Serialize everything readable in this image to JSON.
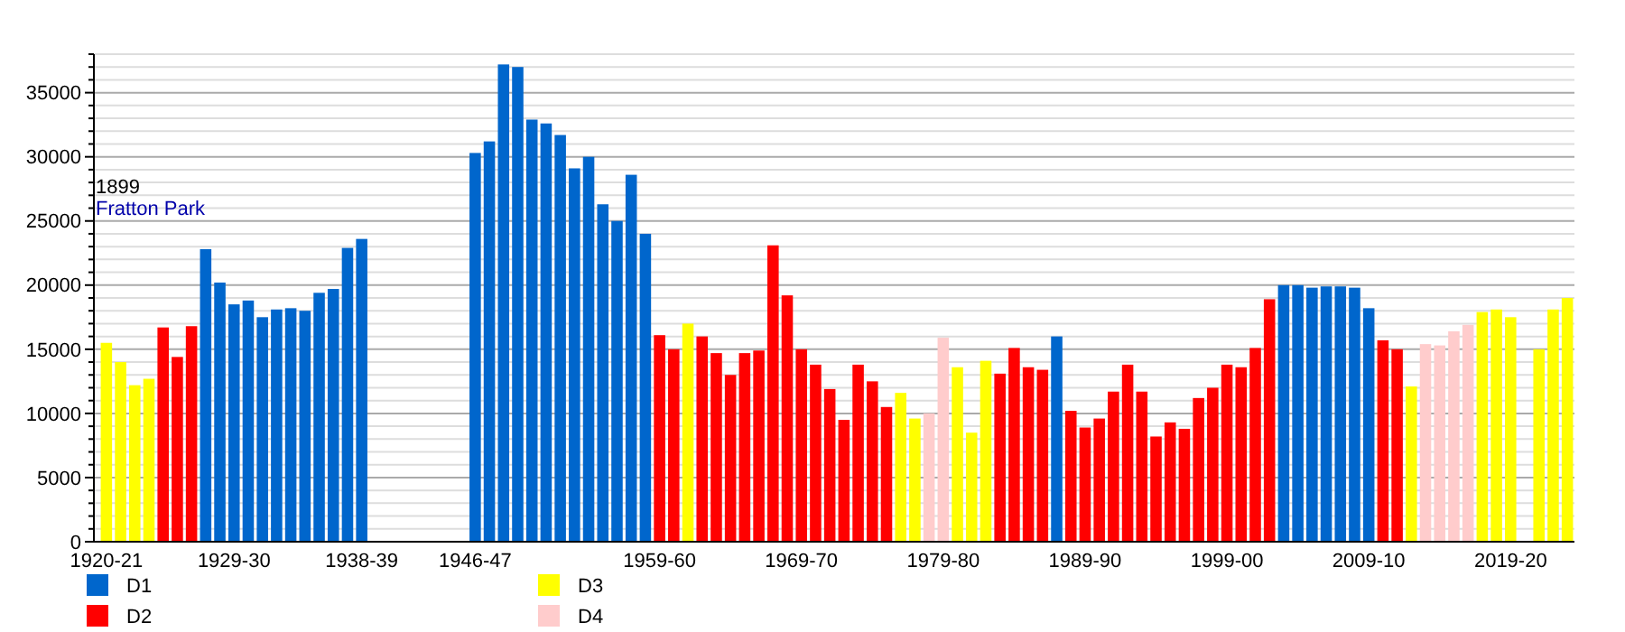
{
  "chart_data": {
    "type": "bar",
    "categories": [
      "1920-21",
      null,
      null,
      null,
      null,
      null,
      null,
      null,
      null,
      "1929-30",
      null,
      null,
      null,
      null,
      null,
      null,
      null,
      null,
      "1938-39",
      null,
      null,
      null,
      null,
      null,
      null,
      null,
      "1946-47",
      null,
      null,
      null,
      null,
      null,
      null,
      null,
      null,
      null,
      null,
      null,
      null,
      "1959-60",
      null,
      null,
      null,
      null,
      null,
      null,
      null,
      null,
      null,
      "1969-70",
      null,
      null,
      null,
      null,
      null,
      null,
      null,
      null,
      null,
      "1979-80",
      null,
      null,
      null,
      null,
      null,
      null,
      null,
      null,
      null,
      "1989-90",
      null,
      null,
      null,
      null,
      null,
      null,
      null,
      null,
      null,
      "1999-00",
      null,
      null,
      null,
      null,
      null,
      null,
      null,
      null,
      null,
      "2009-10",
      null,
      null,
      null,
      null,
      null,
      null,
      null,
      null,
      null,
      "2019-20",
      null,
      null,
      null,
      null
    ],
    "series": [
      {
        "name": "D1",
        "color": "#0066cc",
        "values": [
          null,
          null,
          null,
          null,
          null,
          null,
          null,
          22800,
          20200,
          18500,
          18800,
          17500,
          18100,
          18200,
          18000,
          19400,
          19700,
          22900,
          23600,
          null,
          null,
          null,
          null,
          null,
          null,
          null,
          30300,
          31200,
          37200,
          37000,
          32900,
          32600,
          31700,
          29100,
          30000,
          26300,
          25000,
          28600,
          24000,
          null,
          null,
          null,
          null,
          null,
          null,
          null,
          null,
          null,
          null,
          null,
          null,
          null,
          null,
          null,
          null,
          null,
          null,
          null,
          null,
          null,
          null,
          null,
          null,
          null,
          null,
          null,
          null,
          16000,
          null,
          null,
          null,
          null,
          null,
          null,
          null,
          null,
          null,
          null,
          null,
          null,
          null,
          null,
          null,
          20000,
          20000,
          19800,
          19900,
          19900,
          19800,
          18200,
          null,
          null,
          null,
          null,
          null,
          null,
          null,
          null,
          null,
          null,
          null,
          null,
          null,
          null
        ]
      },
      {
        "name": "D2",
        "color": "#ff0000",
        "values": [
          null,
          null,
          null,
          null,
          16700,
          14400,
          16800,
          null,
          null,
          null,
          null,
          null,
          null,
          null,
          null,
          null,
          null,
          null,
          null,
          null,
          null,
          null,
          null,
          null,
          null,
          null,
          null,
          null,
          null,
          null,
          null,
          null,
          null,
          null,
          null,
          null,
          null,
          null,
          null,
          16100,
          15000,
          null,
          16000,
          14700,
          13000,
          14700,
          14900,
          23100,
          19200,
          15000,
          13800,
          11900,
          9500,
          13800,
          12500,
          10500,
          null,
          null,
          null,
          null,
          null,
          null,
          null,
          13100,
          15100,
          13600,
          13400,
          null,
          10200,
          8900,
          9600,
          11700,
          13800,
          11700,
          8200,
          9300,
          8800,
          11200,
          12000,
          13800,
          13600,
          15100,
          18900,
          null,
          null,
          null,
          null,
          null,
          null,
          null,
          15700,
          15000,
          null,
          null,
          null,
          null,
          null,
          null,
          null,
          null,
          null,
          null,
          null,
          null
        ]
      },
      {
        "name": "D3",
        "color": "#ffff00",
        "values": [
          15500,
          14000,
          12200,
          12700,
          null,
          null,
          null,
          null,
          null,
          null,
          null,
          null,
          null,
          null,
          null,
          null,
          null,
          null,
          null,
          null,
          null,
          null,
          null,
          null,
          null,
          null,
          null,
          null,
          null,
          null,
          null,
          null,
          null,
          null,
          null,
          null,
          null,
          null,
          null,
          null,
          null,
          17000,
          null,
          null,
          null,
          null,
          null,
          null,
          null,
          null,
          null,
          null,
          null,
          null,
          null,
          null,
          11600,
          9600,
          null,
          null,
          13600,
          8500,
          14100,
          null,
          null,
          null,
          null,
          null,
          null,
          null,
          null,
          null,
          null,
          null,
          null,
          null,
          null,
          null,
          null,
          null,
          null,
          null,
          null,
          null,
          null,
          null,
          null,
          null,
          null,
          null,
          null,
          null,
          12100,
          null,
          null,
          null,
          null,
          17900,
          18100,
          17500,
          null,
          15000,
          18100,
          19000
        ]
      },
      {
        "name": "D4",
        "color": "#ffcccc",
        "values": [
          null,
          null,
          null,
          null,
          null,
          null,
          null,
          null,
          null,
          null,
          null,
          null,
          null,
          null,
          null,
          null,
          null,
          null,
          null,
          null,
          null,
          null,
          null,
          null,
          null,
          null,
          null,
          null,
          null,
          null,
          null,
          null,
          null,
          null,
          null,
          null,
          null,
          null,
          null,
          null,
          null,
          null,
          null,
          null,
          null,
          null,
          null,
          null,
          null,
          null,
          null,
          null,
          null,
          null,
          null,
          null,
          null,
          null,
          10000,
          15900,
          null,
          null,
          null,
          null,
          null,
          null,
          null,
          null,
          null,
          null,
          null,
          null,
          null,
          null,
          null,
          null,
          null,
          null,
          null,
          null,
          null,
          null,
          null,
          null,
          null,
          null,
          null,
          null,
          null,
          null,
          null,
          null,
          null,
          15400,
          15300,
          16400,
          16900,
          null,
          null,
          null,
          null,
          null,
          null,
          null
        ]
      }
    ],
    "ylim": [
      0,
      38000
    ],
    "yticks": [
      0,
      {
        "value": 1000,
        "label": null
      },
      {
        "value": 2000,
        "label": null
      },
      {
        "value": 3000,
        "label": null
      },
      {
        "value": 4000,
        "label": null
      },
      5000,
      {
        "value": 6000,
        "label": null
      },
      {
        "value": 7000,
        "label": null
      },
      {
        "value": 8000,
        "label": null
      },
      {
        "value": 9000,
        "label": null
      },
      10000,
      {
        "value": 11000,
        "label": null
      },
      {
        "value": 12000,
        "label": null
      },
      {
        "value": 13000,
        "label": null
      },
      {
        "value": 14000,
        "label": null
      },
      15000,
      {
        "value": 16000,
        "label": null
      },
      {
        "value": 17000,
        "label": null
      },
      {
        "value": 18000,
        "label": null
      },
      {
        "value": 19000,
        "label": null
      },
      20000,
      {
        "value": 21000,
        "label": null
      },
      {
        "value": 22000,
        "label": null
      },
      {
        "value": 23000,
        "label": null
      },
      {
        "value": 24000,
        "label": null
      },
      25000,
      {
        "value": 26000,
        "label": null
      },
      {
        "value": 27000,
        "label": null
      },
      {
        "value": 28000,
        "label": null
      },
      {
        "value": 29000,
        "label": null
      },
      30000,
      {
        "value": 31000,
        "label": null
      },
      {
        "value": 32000,
        "label": null
      },
      {
        "value": 33000,
        "label": null
      },
      {
        "value": 34000,
        "label": null
      },
      35000,
      {
        "value": 36000,
        "label": null
      },
      {
        "value": 37000,
        "label": null
      },
      {
        "value": 38000,
        "label": null
      }
    ],
    "grid": true,
    "legend": "bottom",
    "annotations": [
      "1899",
      "Fratton Park"
    ]
  }
}
